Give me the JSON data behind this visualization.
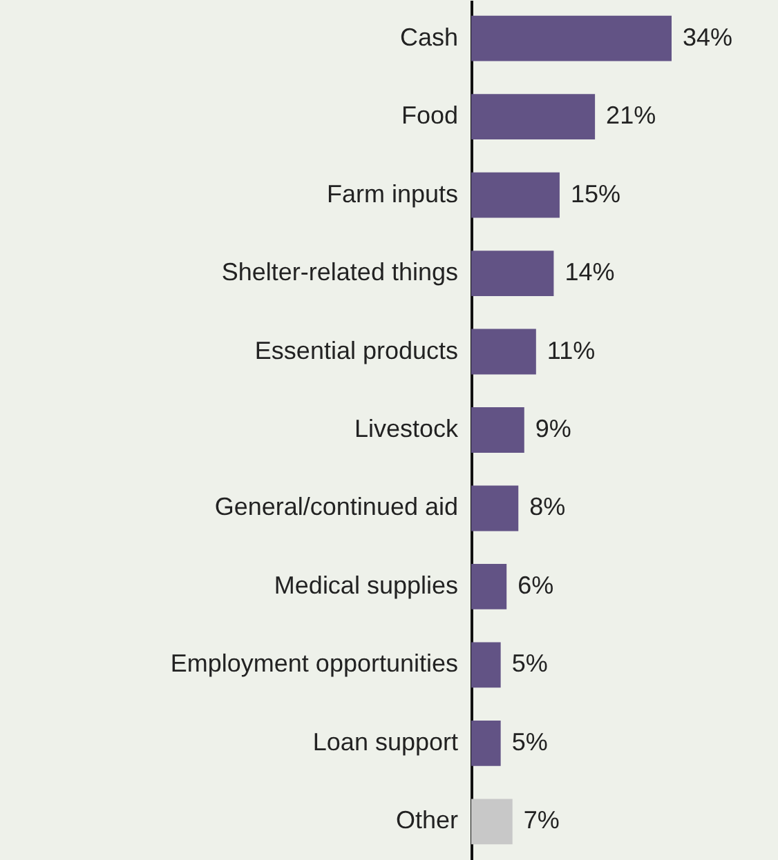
{
  "chart_data": {
    "type": "bar",
    "orientation": "horizontal",
    "categories": [
      "Cash",
      "Food",
      "Farm inputs",
      "Shelter-related things",
      "Essential products",
      "Livestock",
      "General/continued aid",
      "Medical supplies",
      "Employment opportunities",
      "Loan support",
      "Other"
    ],
    "values": [
      34,
      21,
      15,
      14,
      11,
      9,
      8,
      6,
      5,
      5,
      7
    ],
    "colors": [
      "#625385",
      "#625385",
      "#625385",
      "#625385",
      "#625385",
      "#625385",
      "#625385",
      "#625385",
      "#625385",
      "#625385",
      "#c8c8c8"
    ],
    "value_labels": [
      "34%",
      "21%",
      "15%",
      "14%",
      "11%",
      "9%",
      "8%",
      "6%",
      "5%",
      "5%",
      "7%"
    ]
  }
}
